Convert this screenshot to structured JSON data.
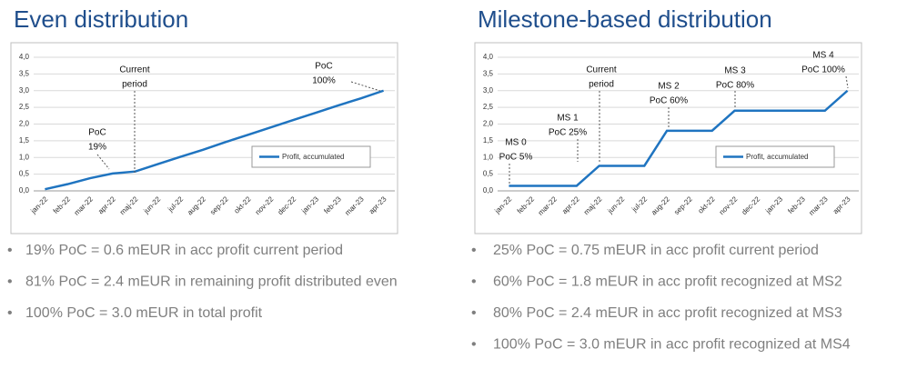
{
  "chart_data": [
    {
      "type": "line",
      "title": "Even distribution",
      "categories": [
        "jan-22",
        "feb-22",
        "mar-22",
        "apr-22",
        "maj-22",
        "jun-22",
        "jul-22",
        "aug-22",
        "sep-22",
        "okt-22",
        "nov-22",
        "dec-22",
        "jan-23",
        "feb-23",
        "mar-23",
        "apr-23"
      ],
      "series": [
        {
          "name": "Profit, accumulated",
          "color": "#1f74c0",
          "values": [
            0.05,
            0.2,
            0.38,
            0.52,
            0.58,
            0.8,
            1.02,
            1.23,
            1.46,
            1.68,
            1.9,
            2.12,
            2.34,
            2.56,
            2.77,
            3.0
          ]
        }
      ],
      "ylim": [
        0,
        4
      ],
      "yticks": [
        {
          "value": 0,
          "label": "0,0"
        },
        {
          "value": 0.5,
          "label": "0,5"
        },
        {
          "value": 1,
          "label": "1,0"
        },
        {
          "value": 1.5,
          "label": "1,5"
        },
        {
          "value": 2,
          "label": "2,0"
        },
        {
          "value": 2.5,
          "label": "2,5"
        },
        {
          "value": 3,
          "label": "3,0"
        },
        {
          "value": 3.5,
          "label": "3,5"
        },
        {
          "value": 4,
          "label": "4,0"
        }
      ],
      "grid": true,
      "annotations": [
        {
          "lines": [
            "Current",
            "period"
          ]
        },
        {
          "lines": [
            "PoC",
            "19%"
          ]
        },
        {
          "lines": [
            "PoC",
            "100%"
          ]
        }
      ],
      "notes": [
        "19% PoC = 0.6 mEUR in acc profit current period",
        "81% PoC = 2.4 mEUR in remaining profit distributed even",
        "100% PoC = 3.0 mEUR in total profit"
      ]
    },
    {
      "type": "line",
      "title": "Milestone-based distribution",
      "categories": [
        "jan-22",
        "feb-22",
        "mar-22",
        "apr-22",
        "maj-22",
        "jun-22",
        "jul-22",
        "aug-22",
        "sep-22",
        "okt-22",
        "nov-22",
        "dec-22",
        "jan-23",
        "feb-23",
        "mar-23",
        "apr-23"
      ],
      "series": [
        {
          "name": "Profit, accumulated",
          "color": "#1f74c0",
          "values": [
            0.15,
            0.15,
            0.15,
            0.15,
            0.75,
            0.75,
            0.75,
            1.8,
            1.8,
            1.8,
            2.4,
            2.4,
            2.4,
            2.4,
            2.4,
            3.0
          ]
        }
      ],
      "ylim": [
        0,
        4
      ],
      "yticks": [
        {
          "value": 0,
          "label": "0,0"
        },
        {
          "value": 0.5,
          "label": "0,5"
        },
        {
          "value": 1,
          "label": "1,0"
        },
        {
          "value": 1.5,
          "label": "1,5"
        },
        {
          "value": 2,
          "label": "2,0"
        },
        {
          "value": 2.5,
          "label": "2,5"
        },
        {
          "value": 3,
          "label": "3,0"
        },
        {
          "value": 3.5,
          "label": "3,5"
        },
        {
          "value": 4,
          "label": "4,0"
        }
      ],
      "grid": true,
      "annotations": [
        {
          "lines": [
            "MS 0",
            "PoC 5%"
          ]
        },
        {
          "lines": [
            "MS 1",
            "PoC 25%"
          ]
        },
        {
          "lines": [
            "Current",
            "period"
          ]
        },
        {
          "lines": [
            "MS 2",
            "PoC 60%"
          ]
        },
        {
          "lines": [
            "MS 3",
            "PoC 80%"
          ]
        },
        {
          "lines": [
            "MS 4",
            "PoC 100%"
          ]
        }
      ],
      "notes": [
        "25% PoC = 0.75 mEUR in acc profit current period",
        "60% PoC = 1.8 mEUR in acc profit recognized at MS2",
        "80% PoC = 2.4 mEUR in acc profit recognized at MS3",
        "100% PoC = 3.0 mEUR in acc profit recognized at MS4"
      ]
    }
  ]
}
